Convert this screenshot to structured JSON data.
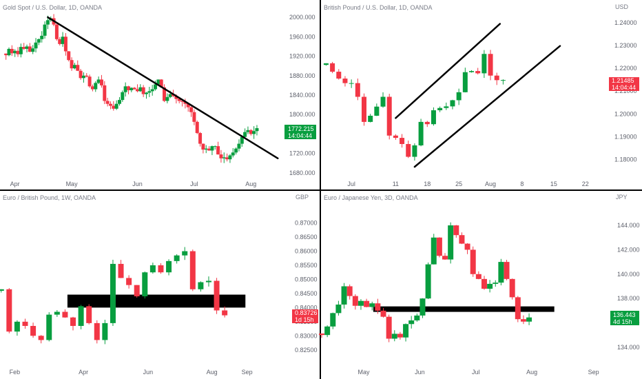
{
  "colors": {
    "up": "#089e3f",
    "down": "#f23645",
    "annotation": "#000000",
    "axis_text": "#5d606b",
    "title_text": "#787b86"
  },
  "chart_data": [
    {
      "type": "candlestick",
      "title": "Gold Spot / U.S. Dollar, 1D, OANDA",
      "currency": "USD",
      "timeframe": "1D",
      "last_price": "1772.215",
      "countdown": "14:04:44",
      "last_direction": "up",
      "ylim": [
        1670,
        2010
      ],
      "y_ticks": [
        "2000.000",
        "1960.000",
        "1920.000",
        "1880.000",
        "1840.000",
        "1800.000",
        "1760.000",
        "1720.000",
        "1680.000"
      ],
      "x_ticks": [
        {
          "label": "Apr",
          "x": 3
        },
        {
          "label": "May",
          "x": 22
        },
        {
          "label": "Jun",
          "x": 44
        },
        {
          "label": "Jul",
          "x": 63
        },
        {
          "label": "Aug",
          "x": 82
        }
      ],
      "x_range": [
        -2,
        93
      ],
      "closes": [
        1922,
        1935,
        1926,
        1931,
        1924,
        1939,
        1935,
        1940,
        1929,
        1936,
        1948,
        1955,
        1962,
        1985,
        1994,
        1998,
        1985,
        1955,
        1945,
        1960,
        1930,
        1912,
        1895,
        1902,
        1890,
        1875,
        1880,
        1878,
        1858,
        1852,
        1865,
        1872,
        1860,
        1828,
        1822,
        1818,
        1812,
        1822,
        1830,
        1846,
        1858,
        1850,
        1855,
        1852,
        1848,
        1856,
        1842,
        1845,
        1848,
        1852,
        1862,
        1872,
        1856,
        1828,
        1836,
        1842,
        1838,
        1832,
        1828,
        1826,
        1822,
        1815,
        1805,
        1785,
        1762,
        1740,
        1728,
        1730,
        1726,
        1735,
        1735,
        1718,
        1710,
        1712,
        1708,
        1716,
        1722,
        1730,
        1740,
        1754,
        1764,
        1768,
        1760,
        1766,
        1772
      ],
      "annotations": [
        {
          "type": "trendline",
          "from": {
            "x": 14,
            "y": 2000
          },
          "to": {
            "x": 91,
            "y": 1710
          }
        }
      ]
    },
    {
      "type": "candlestick",
      "title": "British Pound / U.S. Dollar, 1D, OANDA",
      "currency": "USD",
      "timeframe": "1D",
      "last_price": "1.21485",
      "countdown": "14:04:44",
      "last_direction": "down",
      "ylim": [
        1.172,
        1.2445
      ],
      "y_ticks": [
        "1.24000",
        "1.23000",
        "1.22000",
        "1.21000",
        "1.20000",
        "1.19000",
        "1.18000"
      ],
      "x_ticks": [
        {
          "label": "Jul",
          "x": 4
        },
        {
          "label": "11",
          "x": 11
        },
        {
          "label": "18",
          "x": 16
        },
        {
          "label": "25",
          "x": 21
        },
        {
          "label": "Aug",
          "x": 26
        },
        {
          "label": "8",
          "x": 31
        },
        {
          "label": "15",
          "x": 36
        },
        {
          "label": "22",
          "x": 41
        }
      ],
      "x_range": [
        -0.7,
        44.3
      ],
      "closes": [
        1.2222,
        1.2185,
        1.2155,
        1.2135,
        1.2135,
        1.2075,
        1.1965,
        1.1992,
        1.2032,
        1.2075,
        1.1905,
        1.1895,
        1.1868,
        1.1812,
        1.1862,
        1.1965,
        1.1955,
        1.2016,
        1.2026,
        1.2033,
        1.206,
        1.2095,
        1.2183,
        1.2188,
        1.2178,
        1.2263,
        1.2168,
        1.2148,
        1.21485
      ],
      "annotations": [
        {
          "type": "trendline",
          "from": {
            "x": 11,
            "y": 1.1982
          },
          "to": {
            "x": 27.5,
            "y": 1.2395
          }
        },
        {
          "type": "trendline",
          "from": {
            "x": 14,
            "y": 1.1768
          },
          "to": {
            "x": 37,
            "y": 1.2298
          }
        }
      ]
    },
    {
      "type": "candlestick",
      "title": "Euro / British Pound, 1W, OANDA",
      "currency": "GBP",
      "timeframe": "1W",
      "last_price": "0.83726",
      "countdown": "1d 15h",
      "last_direction": "down",
      "ylim": [
        0.8225,
        0.8765
      ],
      "y_ticks": [
        "0.87000",
        "0.86500",
        "0.86000",
        "0.85500",
        "0.85000",
        "0.84500",
        "0.84000",
        "0.83500",
        "0.83000",
        "0.82500"
      ],
      "x_ticks": [
        {
          "label": "Feb",
          "x": 1.7
        },
        {
          "label": "Apr",
          "x": 10.3
        },
        {
          "label": "Jun",
          "x": 18.4
        },
        {
          "label": "Aug",
          "x": 26.4
        },
        {
          "label": "Sep",
          "x": 30.8
        }
      ],
      "x_range": [
        -0.15,
        36.1
      ],
      "closes": [
        0.8465,
        0.8315,
        0.835,
        0.8335,
        0.83,
        0.8285,
        0.8375,
        0.8385,
        0.8365,
        0.8335,
        0.8405,
        0.8345,
        0.8285,
        0.8345,
        0.8555,
        0.8505,
        0.848,
        0.844,
        0.8525,
        0.855,
        0.8525,
        0.8565,
        0.8585,
        0.86,
        0.8465,
        0.849,
        0.8495,
        0.839,
        0.83726
      ],
      "annotations": [
        {
          "type": "zone",
          "x_from": 8.3,
          "x_to": 30.6,
          "y_from": 0.84,
          "y_to": 0.8446
        }
      ]
    },
    {
      "type": "candlestick",
      "title": "Euro / Japanese Yen, 3D, OANDA",
      "currency": "JPY",
      "timeframe": "3D",
      "last_price": "136.443",
      "countdown": "4d 15h",
      "last_direction": "up",
      "ylim": [
        133.2,
        145.7
      ],
      "y_ticks": [
        "144.000",
        "142.000",
        "140.000",
        "138.000",
        "136.000",
        "134.000"
      ],
      "x_ticks": [
        {
          "label": "May",
          "x": 7.5
        },
        {
          "label": "Jun",
          "x": 17.5
        },
        {
          "label": "Jul",
          "x": 27.5
        },
        {
          "label": "Aug",
          "x": 37.5
        },
        {
          "label": "Sep",
          "x": 48.5
        }
      ],
      "x_range": [
        0,
        51
      ],
      "closes": [
        135.0,
        135.7,
        136.8,
        137.5,
        139.0,
        138.2,
        137.4,
        137.8,
        137.3,
        137.6,
        137.0,
        136.5,
        134.7,
        135.1,
        134.8,
        135.9,
        136.2,
        136.6,
        138.0,
        140.8,
        143.0,
        141.5,
        141.2,
        144.0,
        143.2,
        142.5,
        142.0,
        140.0,
        139.6,
        138.8,
        139.2,
        139.3,
        141.0,
        139.6,
        138.1,
        136.3,
        136.1,
        136.443
      ],
      "annotations": [
        {
          "type": "zone",
          "x_from": 9.2,
          "x_to": 41.5,
          "y_from": 136.9,
          "y_to": 137.35
        }
      ]
    }
  ]
}
